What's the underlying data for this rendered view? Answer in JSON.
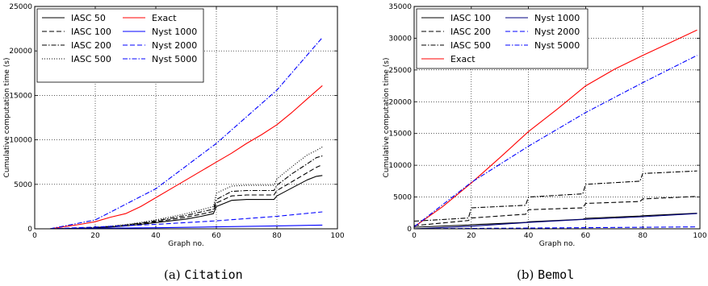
{
  "chart_data": [
    {
      "type": "line",
      "caption_prefix": "(a)",
      "caption_name": "Citation",
      "xlabel": "Graph no.",
      "ylabel": "Cumulative computation time (s)",
      "xlim": [
        0,
        100
      ],
      "ylim": [
        0,
        25000
      ],
      "xticks": [
        0,
        20,
        40,
        60,
        80,
        100
      ],
      "yticks": [
        0,
        5000,
        10000,
        15000,
        20000,
        25000
      ],
      "grid": true,
      "legend_position": "top-left",
      "legend_columns": 2,
      "series": [
        {
          "name": "IASC 50",
          "color": "#000000",
          "dash": "solid",
          "x": [
            5,
            10,
            15,
            20,
            25,
            30,
            35,
            40,
            45,
            50,
            55,
            59,
            60,
            65,
            70,
            75,
            79,
            80,
            85,
            90,
            93,
            95
          ],
          "y": [
            0,
            20,
            50,
            100,
            200,
            320,
            500,
            700,
            900,
            1100,
            1400,
            1700,
            2500,
            3200,
            3300,
            3300,
            3300,
            3700,
            4600,
            5500,
            5900,
            6000
          ]
        },
        {
          "name": "IASC 100",
          "color": "#000000",
          "dash": "dashed",
          "x": [
            5,
            10,
            15,
            20,
            25,
            30,
            35,
            40,
            45,
            50,
            55,
            59,
            60,
            65,
            70,
            75,
            79,
            80,
            85,
            90,
            93,
            95
          ],
          "y": [
            0,
            25,
            60,
            120,
            240,
            380,
            580,
            800,
            1050,
            1300,
            1650,
            1950,
            2900,
            3700,
            3800,
            3800,
            3800,
            4300,
            5300,
            6300,
            6900,
            7200
          ]
        },
        {
          "name": "IASC 200",
          "color": "#000000",
          "dash": "dashdot",
          "x": [
            5,
            10,
            15,
            20,
            25,
            30,
            35,
            40,
            45,
            50,
            55,
            59,
            60,
            65,
            70,
            75,
            79,
            80,
            85,
            90,
            93,
            95
          ],
          "y": [
            0,
            30,
            70,
            140,
            270,
            430,
            650,
            900,
            1200,
            1500,
            1900,
            2200,
            3300,
            4200,
            4300,
            4300,
            4300,
            4900,
            6200,
            7300,
            8000,
            8200
          ]
        },
        {
          "name": "IASC 500",
          "color": "#000000",
          "dash": "dotted",
          "x": [
            5,
            10,
            15,
            20,
            25,
            30,
            35,
            40,
            45,
            50,
            55,
            59,
            60,
            65,
            70,
            75,
            79,
            80,
            85,
            90,
            93,
            95
          ],
          "y": [
            0,
            35,
            80,
            160,
            300,
            480,
            720,
            1000,
            1350,
            1700,
            2150,
            2500,
            4000,
            4800,
            4900,
            4900,
            4900,
            5600,
            7000,
            8300,
            8800,
            9200
          ]
        },
        {
          "name": "Exact",
          "color": "#ff0000",
          "dash": "solid",
          "x": [
            5,
            10,
            15,
            20,
            25,
            30,
            35,
            40,
            45,
            50,
            55,
            60,
            65,
            70,
            75,
            80,
            85,
            90,
            95
          ],
          "y": [
            0,
            250,
            500,
            800,
            1300,
            1700,
            2500,
            3500,
            4500,
            5500,
            6500,
            7500,
            8500,
            9600,
            10600,
            11700,
            13100,
            14600,
            16100
          ]
        },
        {
          "name": "Nyst 1000",
          "color": "#0000ff",
          "dash": "solid",
          "x": [
            5,
            20,
            40,
            60,
            80,
            95
          ],
          "y": [
            0,
            50,
            120,
            220,
            330,
            420
          ]
        },
        {
          "name": "Nyst 2000",
          "color": "#0000ff",
          "dash": "dashed",
          "x": [
            5,
            20,
            40,
            60,
            80,
            95
          ],
          "y": [
            0,
            200,
            500,
            900,
            1400,
            1900
          ]
        },
        {
          "name": "Nyst 5000",
          "color": "#0000ff",
          "dash": "dashdot",
          "x": [
            5,
            20,
            40,
            60,
            80,
            95
          ],
          "y": [
            0,
            1000,
            4500,
            9600,
            15600,
            21500
          ]
        }
      ]
    },
    {
      "type": "line",
      "caption_prefix": "(b)",
      "caption_name": "Bemol",
      "xlabel": "Graph no.",
      "ylabel": "Cumulative computation time (s)",
      "xlim": [
        0,
        100
      ],
      "ylim": [
        0,
        35000
      ],
      "xticks": [
        0,
        20,
        40,
        60,
        80,
        100
      ],
      "yticks": [
        0,
        5000,
        10000,
        15000,
        20000,
        25000,
        30000,
        35000
      ],
      "grid": true,
      "legend_position": "top-left",
      "legend_columns": 2,
      "series": [
        {
          "name": "IASC 100",
          "color": "#000000",
          "dash": "solid",
          "x": [
            0,
            19,
            20,
            39,
            40,
            59,
            60,
            79,
            80,
            99
          ],
          "y": [
            250,
            600,
            650,
            1000,
            1100,
            1500,
            1650,
            2000,
            2050,
            2450
          ]
        },
        {
          "name": "IASC 200",
          "color": "#000000",
          "dash": "dashed",
          "x": [
            0,
            19,
            20,
            39,
            40,
            59,
            60,
            79,
            80,
            99
          ],
          "y": [
            500,
            1300,
            1700,
            2300,
            3000,
            3300,
            4000,
            4300,
            4700,
            5100
          ]
        },
        {
          "name": "IASC 500",
          "color": "#000000",
          "dash": "dashdot",
          "x": [
            0,
            19,
            20,
            39,
            40,
            59,
            60,
            79,
            80,
            99
          ],
          "y": [
            1200,
            1700,
            3300,
            3700,
            5000,
            5500,
            7000,
            7500,
            8700,
            9100
          ]
        },
        {
          "name": "Exact",
          "color": "#ff0000",
          "dash": "solid",
          "x": [
            0,
            10,
            20,
            30,
            40,
            50,
            60,
            70,
            80,
            90,
            99
          ],
          "y": [
            300,
            3500,
            7200,
            11200,
            15300,
            18800,
            22500,
            25100,
            27300,
            29400,
            31300
          ]
        },
        {
          "name": "Nyst 1000",
          "color": "#000080",
          "dash": "solid",
          "x": [
            0,
            20,
            40,
            60,
            80,
            99
          ],
          "y": [
            0,
            400,
            1000,
            1500,
            1900,
            2400
          ]
        },
        {
          "name": "Nyst 2000",
          "color": "#0000ff",
          "dash": "dashed",
          "x": [
            0,
            20,
            40,
            60,
            80,
            99
          ],
          "y": [
            0,
            60,
            120,
            180,
            240,
            300
          ]
        },
        {
          "name": "Nyst 5000",
          "color": "#0000ff",
          "dash": "dashdot",
          "x": [
            0,
            20,
            40,
            60,
            80,
            99
          ],
          "y": [
            300,
            7300,
            13000,
            18300,
            23000,
            27300
          ]
        }
      ]
    }
  ]
}
